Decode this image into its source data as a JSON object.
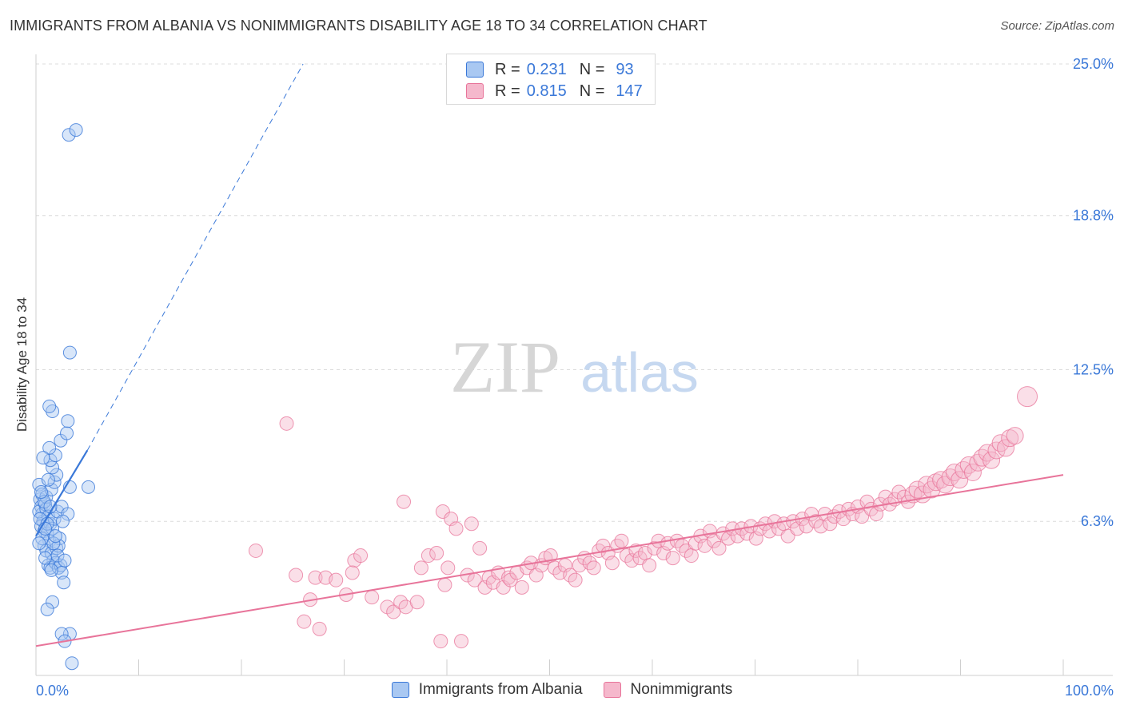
{
  "title": "IMMIGRANTS FROM ALBANIA VS NONIMMIGRANTS DISABILITY AGE 18 TO 34 CORRELATION CHART",
  "source": "Source: ZipAtlas.com",
  "watermark": {
    "zip": "ZIP",
    "atlas": "atlas"
  },
  "colors": {
    "blue": "#3a78d8",
    "blue_fill": "#a9c8f2",
    "pink": "#e8749a",
    "pink_fill": "#f5b8cc",
    "grid": "#dcdcdc",
    "tick_label": "#3a78d8"
  },
  "legend": {
    "rows": [
      {
        "r_label": "R =",
        "r_value": "0.231",
        "n_label": "N =",
        "n_value": "93"
      },
      {
        "r_label": "R =",
        "r_value": "0.815",
        "n_label": "N =",
        "n_value": "147"
      }
    ]
  },
  "chart_data": {
    "type": "scatter",
    "title": "IMMIGRANTS FROM ALBANIA VS NONIMMIGRANTS DISABILITY AGE 18 TO 34 CORRELATION CHART",
    "xlabel": "",
    "ylabel": "Disability Age 18 to 34",
    "xlim": [
      0,
      100
    ],
    "ylim": [
      0,
      25
    ],
    "x_tick_labels": [
      "0.0%",
      "100.0%"
    ],
    "y_ticks": [
      6.3,
      12.5,
      18.8,
      25.0
    ],
    "y_tick_labels": [
      "6.3%",
      "12.5%",
      "18.8%",
      "25.0%"
    ],
    "series": [
      {
        "name": "Immigrants from Albania",
        "r": 0.231,
        "n": 93,
        "trend": {
          "x0": 0,
          "y0": 5.7,
          "x1": 5,
          "y1": 9.2,
          "dashed_to_x": 26,
          "dashed_to_y": 25
        },
        "points": [
          [
            0.3,
            7.8
          ],
          [
            0.4,
            7.2
          ],
          [
            0.5,
            6.9
          ],
          [
            0.6,
            6.6
          ],
          [
            0.7,
            6.3
          ],
          [
            0.5,
            6.1
          ],
          [
            0.8,
            5.9
          ],
          [
            0.3,
            6.7
          ],
          [
            0.6,
            7.4
          ],
          [
            0.9,
            7.0
          ],
          [
            1.0,
            6.8
          ],
          [
            1.2,
            6.5
          ],
          [
            1.4,
            6.2
          ],
          [
            1.1,
            5.8
          ],
          [
            1.3,
            5.5
          ],
          [
            0.8,
            5.3
          ],
          [
            1.0,
            5.1
          ],
          [
            1.5,
            5.0
          ],
          [
            1.7,
            4.7
          ],
          [
            1.2,
            4.5
          ],
          [
            1.4,
            4.4
          ],
          [
            1.9,
            4.6
          ],
          [
            2.2,
            4.4
          ],
          [
            2.4,
            4.5
          ],
          [
            2.0,
            5.2
          ],
          [
            2.3,
            5.6
          ],
          [
            1.6,
            6.0
          ],
          [
            1.8,
            6.4
          ],
          [
            2.1,
            6.7
          ],
          [
            2.5,
            6.9
          ],
          [
            1.0,
            7.3
          ],
          [
            1.5,
            7.6
          ],
          [
            1.8,
            7.9
          ],
          [
            2.0,
            8.2
          ],
          [
            1.6,
            8.5
          ],
          [
            1.4,
            8.8
          ],
          [
            1.9,
            9.0
          ],
          [
            1.3,
            9.3
          ],
          [
            2.4,
            9.6
          ],
          [
            3.0,
            9.9
          ],
          [
            3.1,
            10.4
          ],
          [
            1.6,
            10.8
          ],
          [
            1.3,
            11.0
          ],
          [
            3.3,
            7.7
          ],
          [
            0.7,
            8.9
          ],
          [
            3.1,
            6.6
          ],
          [
            2.6,
            6.3
          ],
          [
            2.2,
            5.3
          ],
          [
            0.9,
            4.8
          ],
          [
            2.5,
            4.2
          ],
          [
            2.7,
            3.8
          ],
          [
            1.6,
            3.0
          ],
          [
            1.1,
            2.7
          ],
          [
            3.3,
            1.7
          ],
          [
            2.5,
            1.7
          ],
          [
            2.8,
            1.4
          ],
          [
            3.5,
            0.5
          ],
          [
            3.3,
            13.2
          ],
          [
            3.2,
            22.1
          ],
          [
            3.9,
            22.3
          ],
          [
            5.1,
            7.7
          ],
          [
            0.4,
            6.4
          ],
          [
            0.6,
            5.6
          ],
          [
            0.8,
            7.1
          ],
          [
            1.1,
            6.2
          ],
          [
            1.7,
            5.4
          ],
          [
            2.1,
            4.9
          ],
          [
            2.8,
            4.7
          ],
          [
            0.5,
            7.5
          ],
          [
            1.2,
            8.0
          ],
          [
            1.5,
            4.3
          ],
          [
            1.9,
            5.7
          ],
          [
            0.3,
            5.4
          ],
          [
            0.9,
            6.0
          ],
          [
            1.4,
            6.9
          ]
        ]
      },
      {
        "name": "Nonimmigrants",
        "r": 0.815,
        "n": 147,
        "trend": {
          "x0": 0,
          "y0": 1.2,
          "x1": 100,
          "y1": 8.2
        },
        "points": [
          [
            24.4,
            10.3
          ],
          [
            21.4,
            5.1
          ],
          [
            25.3,
            4.1
          ],
          [
            26.1,
            2.2
          ],
          [
            26.7,
            3.1
          ],
          [
            27.2,
            4.0
          ],
          [
            27.6,
            1.9
          ],
          [
            28.2,
            4.0
          ],
          [
            30.2,
            3.3
          ],
          [
            29.2,
            3.9
          ],
          [
            31.0,
            4.7
          ],
          [
            30.8,
            4.2
          ],
          [
            31.6,
            4.9
          ],
          [
            32.7,
            3.2
          ],
          [
            34.2,
            2.8
          ],
          [
            34.8,
            2.6
          ],
          [
            35.5,
            3.0
          ],
          [
            36.0,
            2.8
          ],
          [
            37.1,
            3.0
          ],
          [
            35.8,
            7.1
          ],
          [
            37.5,
            4.4
          ],
          [
            38.2,
            4.9
          ],
          [
            39.0,
            5.0
          ],
          [
            39.4,
            1.4
          ],
          [
            39.6,
            6.7
          ],
          [
            39.8,
            3.7
          ],
          [
            40.1,
            4.4
          ],
          [
            40.4,
            6.4
          ],
          [
            40.9,
            6.0
          ],
          [
            41.4,
            1.4
          ],
          [
            42.0,
            4.1
          ],
          [
            42.4,
            6.2
          ],
          [
            42.7,
            3.9
          ],
          [
            43.2,
            5.2
          ],
          [
            43.7,
            3.6
          ],
          [
            44.1,
            4.0
          ],
          [
            44.5,
            3.8
          ],
          [
            45.0,
            4.2
          ],
          [
            45.5,
            3.6
          ],
          [
            46.0,
            4.0
          ],
          [
            46.2,
            3.9
          ],
          [
            46.8,
            4.2
          ],
          [
            47.3,
            3.6
          ],
          [
            47.8,
            4.4
          ],
          [
            48.2,
            4.6
          ],
          [
            48.7,
            4.1
          ],
          [
            49.2,
            4.5
          ],
          [
            49.6,
            4.8
          ],
          [
            50.1,
            4.9
          ],
          [
            50.5,
            4.4
          ],
          [
            51.0,
            4.2
          ],
          [
            51.5,
            4.5
          ],
          [
            52.0,
            4.1
          ],
          [
            52.5,
            3.9
          ],
          [
            52.9,
            4.5
          ],
          [
            53.4,
            4.8
          ],
          [
            53.9,
            4.6
          ],
          [
            54.3,
            4.4
          ],
          [
            54.8,
            5.1
          ],
          [
            55.2,
            5.3
          ],
          [
            55.7,
            5.0
          ],
          [
            56.1,
            4.6
          ],
          [
            56.6,
            5.3
          ],
          [
            57.0,
            5.5
          ],
          [
            57.5,
            4.9
          ],
          [
            58.0,
            4.7
          ],
          [
            58.4,
            5.1
          ],
          [
            58.8,
            4.8
          ],
          [
            59.3,
            5.0
          ],
          [
            59.7,
            4.5
          ],
          [
            60.2,
            5.2
          ],
          [
            60.6,
            5.5
          ],
          [
            61.1,
            5.0
          ],
          [
            61.5,
            5.4
          ],
          [
            62.0,
            4.8
          ],
          [
            62.4,
            5.5
          ],
          [
            62.9,
            5.3
          ],
          [
            63.3,
            5.1
          ],
          [
            63.8,
            4.9
          ],
          [
            64.2,
            5.4
          ],
          [
            64.7,
            5.7
          ],
          [
            65.1,
            5.3
          ],
          [
            65.6,
            5.9
          ],
          [
            66.0,
            5.5
          ],
          [
            66.5,
            5.2
          ],
          [
            66.9,
            5.8
          ],
          [
            67.4,
            5.6
          ],
          [
            67.8,
            6.0
          ],
          [
            68.3,
            5.7
          ],
          [
            68.7,
            6.0
          ],
          [
            69.2,
            5.8
          ],
          [
            69.6,
            6.1
          ],
          [
            70.1,
            5.6
          ],
          [
            70.5,
            6.0
          ],
          [
            71.0,
            6.2
          ],
          [
            71.4,
            5.9
          ],
          [
            71.9,
            6.3
          ],
          [
            72.3,
            6.0
          ],
          [
            72.8,
            6.2
          ],
          [
            73.2,
            5.7
          ],
          [
            73.7,
            6.3
          ],
          [
            74.1,
            6.0
          ],
          [
            74.6,
            6.4
          ],
          [
            75.0,
            6.1
          ],
          [
            75.5,
            6.6
          ],
          [
            75.9,
            6.3
          ],
          [
            76.4,
            6.1
          ],
          [
            76.8,
            6.6
          ],
          [
            77.3,
            6.2
          ],
          [
            77.7,
            6.5
          ],
          [
            78.2,
            6.7
          ],
          [
            78.6,
            6.4
          ],
          [
            79.1,
            6.8
          ],
          [
            79.5,
            6.6
          ],
          [
            80.0,
            6.9
          ],
          [
            80.4,
            6.5
          ],
          [
            80.9,
            7.1
          ],
          [
            81.3,
            6.8
          ],
          [
            81.8,
            6.6
          ],
          [
            82.2,
            7.0
          ],
          [
            82.7,
            7.3
          ],
          [
            83.1,
            7.0
          ],
          [
            83.6,
            7.2
          ],
          [
            84.0,
            7.5
          ],
          [
            84.5,
            7.3
          ],
          [
            84.9,
            7.1
          ],
          [
            85.4,
            7.4
          ],
          [
            85.8,
            7.6
          ],
          [
            86.3,
            7.4
          ],
          [
            86.7,
            7.8
          ],
          [
            87.2,
            7.6
          ],
          [
            87.6,
            7.9
          ],
          [
            88.1,
            8.0
          ],
          [
            88.5,
            7.8
          ],
          [
            89.0,
            8.1
          ],
          [
            89.4,
            8.3
          ],
          [
            89.9,
            8.0
          ],
          [
            90.3,
            8.4
          ],
          [
            90.8,
            8.6
          ],
          [
            91.2,
            8.3
          ],
          [
            91.7,
            8.7
          ],
          [
            92.1,
            8.9
          ],
          [
            92.6,
            9.1
          ],
          [
            93.0,
            8.8
          ],
          [
            93.5,
            9.2
          ],
          [
            93.9,
            9.5
          ],
          [
            94.4,
            9.3
          ],
          [
            94.8,
            9.7
          ],
          [
            95.3,
            9.8
          ],
          [
            96.5,
            11.4
          ]
        ]
      }
    ]
  },
  "bottom_legend": [
    {
      "label": "Immigrants from Albania"
    },
    {
      "label": "Nonimmigrants"
    }
  ]
}
